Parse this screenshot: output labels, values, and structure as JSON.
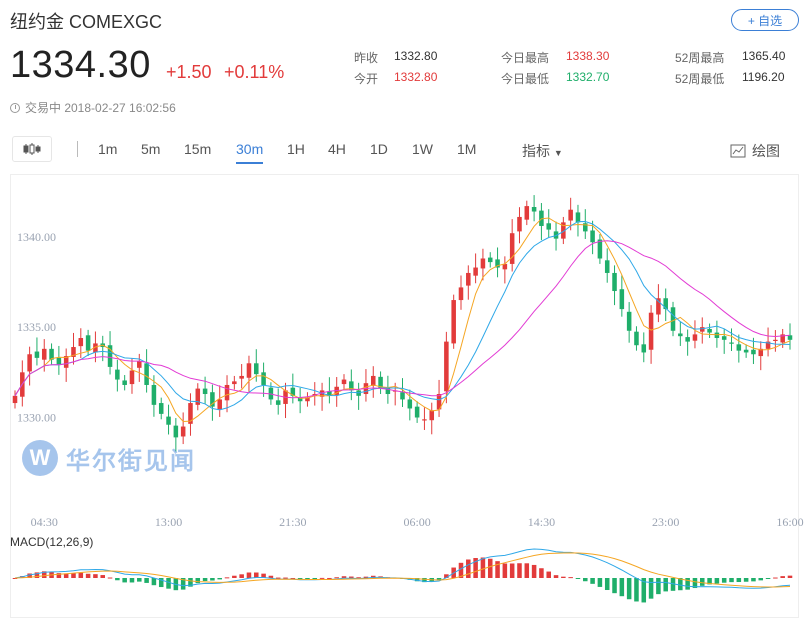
{
  "header": {
    "title": "纽约金 COMEXGC",
    "add_label": "+ 自选",
    "price": "1334.30",
    "change": "+1.50",
    "change_pct": "+0.11%",
    "status_text": "交易中 2018-02-27 16:02:56"
  },
  "stats": {
    "prev_close_label": "昨收",
    "prev_close": "1332.80",
    "open_label": "今开",
    "open": "1332.80",
    "high_label": "今日最高",
    "high": "1338.30",
    "low_label": "今日最低",
    "low": "1332.70",
    "wk52_high_label": "52周最高",
    "wk52_high": "1365.40",
    "wk52_low_label": "52周最低",
    "wk52_low": "1196.20"
  },
  "toolbar": {
    "periods": [
      "1m",
      "5m",
      "15m",
      "30m",
      "1H",
      "4H",
      "1D",
      "1W",
      "1M"
    ],
    "active_period": "30m",
    "indicator_label": "指标",
    "draw_label": "绘图"
  },
  "watermark": {
    "text": "华尔街见闻",
    "logo": "W"
  },
  "chart_data": {
    "type": "candlestick",
    "y_tick_labels": [
      "1340.00",
      "1335.00",
      "1330.00"
    ],
    "y_ticks": [
      1340,
      1335,
      1330
    ],
    "ylim": [
      1325.6,
      1343.2
    ],
    "x_tick_labels": [
      "04:30",
      "13:00",
      "21:30",
      "06:00",
      "14:30",
      "23:00",
      "16:00"
    ],
    "x_tick_index": [
      4,
      21,
      38,
      55,
      72,
      89,
      106
    ],
    "closes": [
      1331.2,
      1332.5,
      1333.5,
      1333.3,
      1333.8,
      1333.2,
      1332.9,
      1333.4,
      1333.9,
      1334.4,
      1333.7,
      1334.1,
      1333.9,
      1332.8,
      1332.1,
      1331.8,
      1332.6,
      1333.1,
      1331.8,
      1330.7,
      1330.2,
      1329.6,
      1328.9,
      1329.5,
      1330.8,
      1331.6,
      1331.3,
      1330.6,
      1331.0,
      1331.8,
      1332.0,
      1332.3,
      1333.0,
      1332.4,
      1331.8,
      1331.0,
      1330.7,
      1331.5,
      1331.2,
      1330.9,
      1331.1,
      1331.3,
      1331.5,
      1331.2,
      1331.7,
      1332.1,
      1331.5,
      1331.2,
      1331.9,
      1332.3,
      1331.6,
      1331.3,
      1331.5,
      1331.0,
      1330.5,
      1330.0,
      1329.9,
      1330.4,
      1331.3,
      1334.2,
      1336.5,
      1337.2,
      1338.0,
      1338.3,
      1338.8,
      1338.6,
      1338.3,
      1338.5,
      1340.2,
      1341.1,
      1341.7,
      1341.4,
      1340.6,
      1340.4,
      1339.9,
      1340.8,
      1341.5,
      1340.8,
      1340.3,
      1339.7,
      1338.8,
      1338.0,
      1337.0,
      1336.0,
      1334.8,
      1334.0,
      1333.6,
      1335.8,
      1336.6,
      1336.0,
      1334.8,
      1334.5,
      1334.2,
      1334.6,
      1335.0,
      1334.7,
      1334.4,
      1334.3,
      1334.1,
      1333.7,
      1333.6,
      1333.5,
      1333.8,
      1334.2,
      1334.3,
      1334.6,
      1334.3
    ],
    "ma_colors": [
      "#f5a623",
      "#2fa8e8",
      "#e23bd4"
    ],
    "up_color": "#e23b3b",
    "down_color": "#1fae6a",
    "macd": {
      "label": "MACD(12,26,9)",
      "dif_color": "#2fa8e8",
      "dea_color": "#f5a623"
    }
  }
}
